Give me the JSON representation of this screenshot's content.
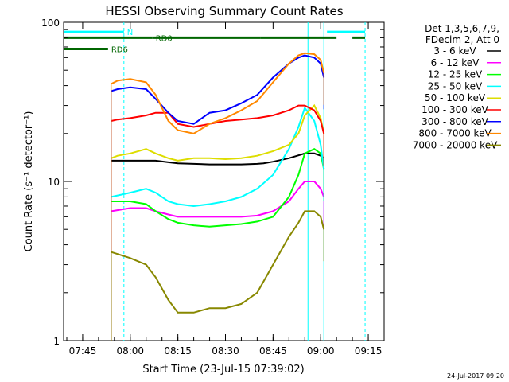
{
  "chart_data": {
    "type": "line",
    "title": "HESSI Observing Summary Count Rates",
    "xlabel": "Start Time (23-Jul-15 07:39:02)",
    "ylabel": "Count Rate (s⁻¹ detector⁻¹)",
    "yscale": "log",
    "ylim": [
      1,
      100
    ],
    "xlim": [
      "07:39",
      "09:20"
    ],
    "x_ticks": [
      "07:45",
      "08:00",
      "08:15",
      "08:30",
      "08:45",
      "09:00",
      "09:15"
    ],
    "y_ticks": [
      "1",
      "10",
      "100"
    ],
    "legend_header": [
      "Det 1,3,5,6,7,9,",
      "FDecim 2, Att 0"
    ],
    "legend_position": "right",
    "series": [
      {
        "name": "3 - 6 keV",
        "color": "#000000",
        "x": [
          "07:54",
          "07:55",
          "08:00",
          "08:05",
          "08:08",
          "08:12",
          "08:15",
          "08:20",
          "08:25",
          "08:30",
          "08:35",
          "08:40",
          "08:42",
          "08:45",
          "08:50",
          "08:55",
          "08:58",
          "09:00",
          "09:01"
        ],
        "y": [
          13.5,
          13.5,
          13.5,
          13.5,
          13.5,
          13.2,
          13,
          12.9,
          12.8,
          12.8,
          12.8,
          12.9,
          13,
          13.3,
          14,
          15,
          15,
          14.5,
          14
        ]
      },
      {
        "name": "6 - 12 keV",
        "color": "#ff00ff",
        "x": [
          "07:54",
          "08:00",
          "08:05",
          "08:08",
          "08:12",
          "08:15",
          "08:20",
          "08:25",
          "08:30",
          "08:35",
          "08:40",
          "08:45",
          "08:50",
          "08:53",
          "08:55",
          "08:58",
          "09:00",
          "09:01"
        ],
        "y": [
          6.5,
          6.8,
          6.8,
          6.5,
          6.2,
          6,
          6,
          6,
          6,
          6,
          6.1,
          6.5,
          7.5,
          9,
          10,
          10,
          9,
          8
        ]
      },
      {
        "name": "12 - 25 keV",
        "color": "#00ff00",
        "x": [
          "07:54",
          "08:00",
          "08:05",
          "08:08",
          "08:12",
          "08:15",
          "08:20",
          "08:25",
          "08:30",
          "08:35",
          "08:40",
          "08:45",
          "08:50",
          "08:53",
          "08:55",
          "08:58",
          "09:00",
          "09:01"
        ],
        "y": [
          7.5,
          7.5,
          7.2,
          6.5,
          5.8,
          5.5,
          5.3,
          5.2,
          5.3,
          5.4,
          5.6,
          6,
          8,
          11,
          15,
          16,
          15,
          12
        ]
      },
      {
        "name": "25 - 50 keV",
        "color": "#00ffff",
        "x": [
          "07:54",
          "08:00",
          "08:05",
          "08:08",
          "08:12",
          "08:15",
          "08:20",
          "08:25",
          "08:30",
          "08:35",
          "08:40",
          "08:45",
          "08:50",
          "08:53",
          "08:55",
          "08:58",
          "09:00",
          "09:01"
        ],
        "y": [
          8,
          8.5,
          9,
          8.5,
          7.5,
          7.2,
          7,
          7.2,
          7.5,
          8,
          9,
          11,
          16,
          22,
          29,
          24,
          17,
          12
        ]
      },
      {
        "name": "50 - 100 keV",
        "color": "#dddd00",
        "x": [
          "07:54",
          "07:56",
          "08:00",
          "08:05",
          "08:08",
          "08:12",
          "08:15",
          "08:20",
          "08:25",
          "08:30",
          "08:35",
          "08:40",
          "08:45",
          "08:50",
          "08:53",
          "08:55",
          "08:58",
          "09:00",
          "09:01"
        ],
        "y": [
          14,
          14.5,
          15,
          16,
          15,
          14,
          13.5,
          14,
          14,
          13.8,
          14,
          14.5,
          15.5,
          17,
          20,
          26,
          30,
          25,
          20
        ]
      },
      {
        "name": "100 - 300 keV",
        "color": "#ff0000",
        "x": [
          "07:54",
          "07:56",
          "08:00",
          "08:05",
          "08:08",
          "08:12",
          "08:15",
          "08:20",
          "08:25",
          "08:30",
          "08:35",
          "08:40",
          "08:45",
          "08:50",
          "08:53",
          "08:55",
          "08:58",
          "09:00",
          "09:01"
        ],
        "y": [
          24,
          24.5,
          25,
          26,
          27,
          27,
          23,
          22,
          23,
          24,
          24.5,
          25,
          26,
          28,
          30,
          30,
          28,
          24,
          20
        ]
      },
      {
        "name": "300 - 800 keV",
        "color": "#0000ff",
        "x": [
          "07:54",
          "07:56",
          "08:00",
          "08:05",
          "08:08",
          "08:12",
          "08:15",
          "08:20",
          "08:25",
          "08:30",
          "08:35",
          "08:40",
          "08:45",
          "08:50",
          "08:53",
          "08:55",
          "08:58",
          "09:00",
          "09:01"
        ],
        "y": [
          37,
          38,
          39,
          38,
          33,
          27,
          24,
          23,
          27,
          28,
          31,
          35,
          45,
          55,
          60,
          62,
          60,
          55,
          45
        ]
      },
      {
        "name": "800 - 7000 keV",
        "color": "#ff8800",
        "x": [
          "07:54",
          "07:56",
          "08:00",
          "08:05",
          "08:08",
          "08:12",
          "08:15",
          "08:20",
          "08:25",
          "08:30",
          "08:35",
          "08:40",
          "08:45",
          "08:50",
          "08:53",
          "08:55",
          "08:58",
          "09:00",
          "09:01"
        ],
        "y": [
          41,
          43,
          44,
          42,
          35,
          24,
          21,
          20,
          23,
          25,
          28,
          32,
          42,
          55,
          62,
          64,
          63,
          58,
          48
        ]
      },
      {
        "name": "7000 - 20000 keV",
        "color": "#888800",
        "x": [
          "07:54",
          "07:56",
          "08:00",
          "08:05",
          "08:08",
          "08:12",
          "08:15",
          "08:20",
          "08:25",
          "08:30",
          "08:35",
          "08:40",
          "08:45",
          "08:50",
          "08:53",
          "08:55",
          "08:58",
          "09:00",
          "09:01"
        ],
        "y": [
          3.6,
          3.5,
          3.3,
          3,
          2.5,
          1.8,
          1.5,
          1.5,
          1.6,
          1.6,
          1.7,
          2,
          3,
          4.5,
          5.5,
          6.5,
          6.5,
          6,
          5
        ]
      }
    ],
    "markers": [
      {
        "label": "N",
        "color": "#00ffff",
        "y": 87,
        "segments": [
          [
            "07:39",
            "07:58"
          ],
          [
            "09:02",
            "09:14"
          ]
        ]
      },
      {
        "label": "RD0",
        "color": "#006600",
        "y": 80,
        "segments": [
          [
            "07:39",
            "08:07"
          ],
          [
            "08:07",
            "08:41"
          ],
          [
            "08:41",
            "09:05"
          ],
          [
            "09:10",
            "09:14"
          ]
        ]
      },
      {
        "label": "RD6",
        "color": "#006600",
        "y": 68,
        "segments": [
          [
            "07:39",
            "07:53"
          ]
        ]
      }
    ],
    "vertical_lines": [
      {
        "x": "07:58",
        "color": "#00ffff",
        "style": "dashed"
      },
      {
        "x": "08:56",
        "color": "#00ffff",
        "style": "solid"
      },
      {
        "x": "09:01",
        "color": "#00ffff",
        "style": "solid"
      },
      {
        "x": "09:14",
        "color": "#00ffff",
        "style": "dashed"
      }
    ],
    "timestamp": "24-Jul-2017 09:20"
  }
}
